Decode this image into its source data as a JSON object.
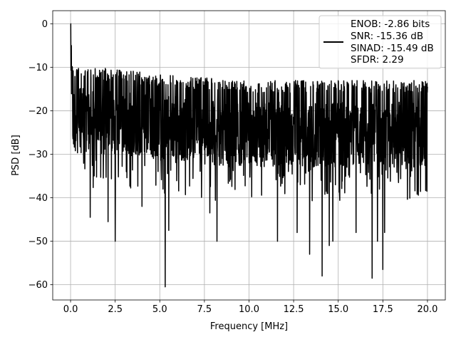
{
  "chart_data": {
    "type": "line",
    "title": "",
    "xlabel": "Frequency [MHz]",
    "ylabel": "PSD [dB]",
    "xlim": [
      -1.0,
      21.0
    ],
    "ylim": [
      -63.5,
      3.0
    ],
    "xticks": [
      0.0,
      2.5,
      5.0,
      7.5,
      10.0,
      12.5,
      15.0,
      17.5,
      20.0
    ],
    "xtick_labels": [
      "0.0",
      "2.5",
      "5.0",
      "7.5",
      "10.0",
      "12.5",
      "15.0",
      "17.5",
      "20.0"
    ],
    "yticks": [
      0,
      -10,
      -20,
      -30,
      -40,
      -50,
      -60
    ],
    "ytick_labels": [
      "0",
      "−10",
      "−20",
      "−30",
      "−40",
      "−50",
      "−60"
    ],
    "grid": true,
    "legend_position": "top-right",
    "series": [
      {
        "name": "ENOB: -2.86 bits\nSNR: -15.36 dB\nSINAD: -15.49 dB\nSFDR: 2.29",
        "color": "#000000",
        "x_range": [
          0.0,
          20.0
        ],
        "noise_floor_db": -24,
        "dc_peak_db": 0,
        "notable_minima": [
          {
            "x": 1.1,
            "y": -44.5
          },
          {
            "x": 2.1,
            "y": -45.5
          },
          {
            "x": 2.5,
            "y": -50
          },
          {
            "x": 4.0,
            "y": -42
          },
          {
            "x": 5.3,
            "y": -60.5
          },
          {
            "x": 5.5,
            "y": -47.5
          },
          {
            "x": 7.8,
            "y": -43.5
          },
          {
            "x": 8.2,
            "y": -50
          },
          {
            "x": 11.6,
            "y": -50
          },
          {
            "x": 12.7,
            "y": -48
          },
          {
            "x": 13.4,
            "y": -53
          },
          {
            "x": 14.1,
            "y": -58
          },
          {
            "x": 14.5,
            "y": -51
          },
          {
            "x": 14.7,
            "y": -50
          },
          {
            "x": 16.0,
            "y": -48
          },
          {
            "x": 16.9,
            "y": -58.5
          },
          {
            "x": 17.2,
            "y": -50
          },
          {
            "x": 17.5,
            "y": -56.5
          },
          {
            "x": 17.6,
            "y": -48
          }
        ],
        "notable_maxima": [
          {
            "x": 0.0,
            "y": 0.0
          },
          {
            "x": 0.05,
            "y": -5
          },
          {
            "x": 0.1,
            "y": -10
          },
          {
            "x": 0.6,
            "y": -11.5
          },
          {
            "x": 1.5,
            "y": -12
          },
          {
            "x": 2.7,
            "y": -12
          },
          {
            "x": 4.3,
            "y": -13.5
          },
          {
            "x": 6.3,
            "y": -13.5
          },
          {
            "x": 9.0,
            "y": -15
          },
          {
            "x": 12.2,
            "y": -15
          },
          {
            "x": 16.8,
            "y": -15
          },
          {
            "x": 20.0,
            "y": -14.5
          }
        ]
      }
    ],
    "legend": {
      "lines": [
        "ENOB: -2.86 bits",
        "SNR: -15.36 dB",
        "SINAD: -15.49 dB",
        "SFDR: 2.29"
      ]
    }
  }
}
